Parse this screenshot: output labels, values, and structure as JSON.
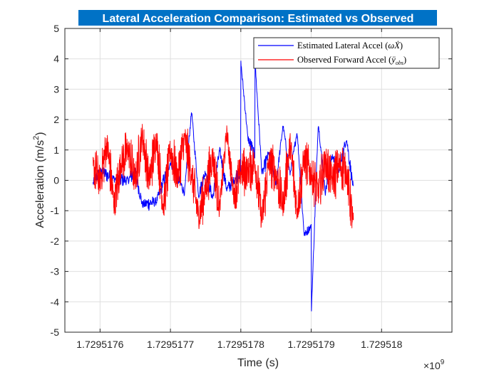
{
  "chart_data": {
    "type": "line",
    "title": "Lateral Acceleration Comparison: Estimated vs Observed",
    "title_background": "#0072c6",
    "title_color": "#ffffff",
    "xlabel": "Time (s)",
    "ylabel": "Acceleration (m/s",
    "ylabel_superscript": "2",
    "ylabel_suffix": ")",
    "x_exponent_base": "×10",
    "x_exponent_power": "9",
    "xlim_display": [
      1.72951755,
      1.7295181
    ],
    "ylim": [
      -5,
      5
    ],
    "x_ticks": [
      1.7295176,
      1.7295177,
      1.7295178,
      1.7295179,
      1.729518
    ],
    "x_tick_labels": [
      "1.7295176",
      "1.7295177",
      "1.7295178",
      "1.7295179",
      "1.729518"
    ],
    "y_ticks": [
      -5,
      -4,
      -3,
      -2,
      -1,
      0,
      1,
      2,
      3,
      4,
      5
    ],
    "y_tick_labels": [
      "-5",
      "-4",
      "-3",
      "-2",
      "-1",
      "0",
      "1",
      "2",
      "3",
      "4",
      "5"
    ],
    "grid": true,
    "legend_position": "top-right",
    "series": [
      {
        "name": "Estimated Lateral Accel (ωẊ)",
        "legend_main": "Estimated Lateral Accel (",
        "legend_math": "ωẊ",
        "legend_close": ")",
        "color": "#0000ff",
        "x": [
          1.72951759,
          1.7295176,
          1.72951762,
          1.72951764,
          1.72951765,
          1.72951766,
          1.72951768,
          1.7295177,
          1.72951772,
          1.72951773,
          1.72951774,
          1.72951775,
          1.72951776,
          1.72951777,
          1.72951778,
          1.72951779,
          1.7295178,
          1.7295178,
          1.72951781,
          1.72951782,
          1.72951782,
          1.72951783,
          1.72951784,
          1.72951785,
          1.72951786,
          1.72951787,
          1.72951788,
          1.72951789,
          1.7295179,
          1.7295179,
          1.72951791,
          1.72951792,
          1.72951793,
          1.72951794,
          1.72951795,
          1.72951796
        ],
        "y": [
          -0.1,
          0.3,
          0.05,
          0.0,
          0.3,
          -0.8,
          -0.7,
          0.6,
          -0.4,
          2.3,
          -0.5,
          0.3,
          -0.6,
          1.0,
          -0.3,
          0.0,
          0.3,
          3.9,
          1.4,
          0.8,
          4.0,
          0.2,
          0.9,
          -0.1,
          1.8,
          0.2,
          1.6,
          -1.8,
          -1.5,
          -4.5,
          1.9,
          -0.4,
          0.8,
          0.3,
          1.4,
          -0.3
        ],
        "noise_amplitude": 0.3
      },
      {
        "name": "Observed Forward Accel (ÿobs)",
        "legend_main": "Observed Forward Accel (",
        "legend_math": "ÿ",
        "legend_math_sub": "obs",
        "legend_close": ")",
        "color": "#ff0000",
        "x": [
          1.72951759,
          1.7295176,
          1.72951761,
          1.72951762,
          1.72951763,
          1.72951764,
          1.72951765,
          1.72951766,
          1.72951767,
          1.72951768,
          1.72951769,
          1.7295177,
          1.72951771,
          1.72951772,
          1.72951773,
          1.72951774,
          1.72951775,
          1.72951776,
          1.72951777,
          1.72951778,
          1.72951779,
          1.7295178,
          1.72951781,
          1.72951782,
          1.72951783,
          1.72951784,
          1.72951785,
          1.72951786,
          1.72951787,
          1.72951788,
          1.72951789,
          1.7295179,
          1.72951791,
          1.72951792,
          1.72951793,
          1.72951794,
          1.72951795,
          1.72951796
        ],
        "y": [
          0.4,
          0.0,
          1.2,
          -0.8,
          0.6,
          1.0,
          0.0,
          1.5,
          0.0,
          1.4,
          -0.9,
          1.0,
          0.1,
          1.4,
          0.2,
          -1.2,
          -0.3,
          0.8,
          -0.9,
          1.6,
          -0.5,
          0.3,
          0.3,
          0.6,
          -1.3,
          0.6,
          0.2,
          -0.8,
          1.2,
          -1.0,
          0.7,
          0.2,
          -0.4,
          0.6,
          0.0,
          0.5,
          0.3,
          -1.5
        ],
        "noise_amplitude": 1.0
      }
    ]
  }
}
